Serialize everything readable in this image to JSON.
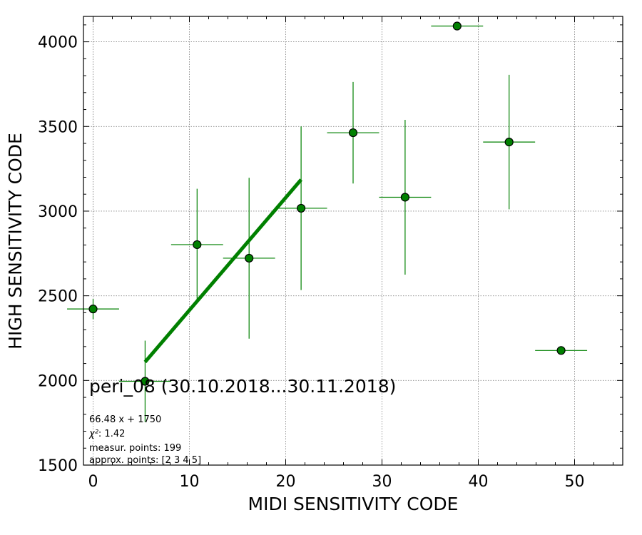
{
  "chart_data": {
    "type": "scatter",
    "xlabel": "MIDI SENSITIVITY CODE",
    "ylabel": "HIGH SENSITIVITY CODE",
    "xlim": [
      -1,
      55
    ],
    "ylim": [
      1500,
      4150
    ],
    "x_ticks": [
      0,
      10,
      20,
      30,
      40,
      50
    ],
    "y_ticks": [
      1500,
      2000,
      2500,
      3000,
      3500,
      4000
    ],
    "grid": true,
    "marker_color": "#008000",
    "series": [
      {
        "points": [
          {
            "x": 0.0,
            "y": 2422,
            "xerr": 2.7,
            "yerr": 60
          },
          {
            "x": 5.4,
            "y": 1995,
            "xerr": 2.7,
            "yerr": 240
          },
          {
            "x": 10.8,
            "y": 2802,
            "xerr": 2.7,
            "yerr": 330
          },
          {
            "x": 16.2,
            "y": 2722,
            "xerr": 2.7,
            "yerr": 475
          },
          {
            "x": 21.6,
            "y": 3017,
            "xerr": 2.7,
            "yerr": 483
          },
          {
            "x": 27.0,
            "y": 3463,
            "xerr": 2.7,
            "yerr": 300
          },
          {
            "x": 32.4,
            "y": 3082,
            "xerr": 2.7,
            "yerr": 457
          },
          {
            "x": 37.8,
            "y": 4093,
            "xerr": 2.7,
            "yerr": 0
          },
          {
            "x": 43.2,
            "y": 3408,
            "xerr": 2.7,
            "yerr": 397
          },
          {
            "x": 48.6,
            "y": 2177,
            "xerr": 2.7,
            "yerr": 0
          }
        ]
      }
    ],
    "fit": {
      "slope": 66.48,
      "intercept": 1750,
      "x_range": [
        5.4,
        21.6
      ],
      "color": "#008000"
    },
    "annotations": {
      "title": "peri_08 (30.10.2018...30.11.2018)",
      "equation": "66.48 x + 1750",
      "chi2_label": "χ²",
      "chi2_value": ": 1.42",
      "measured": "measur. points: 199",
      "approx": "approx. points: [2 3 4 5]"
    }
  }
}
